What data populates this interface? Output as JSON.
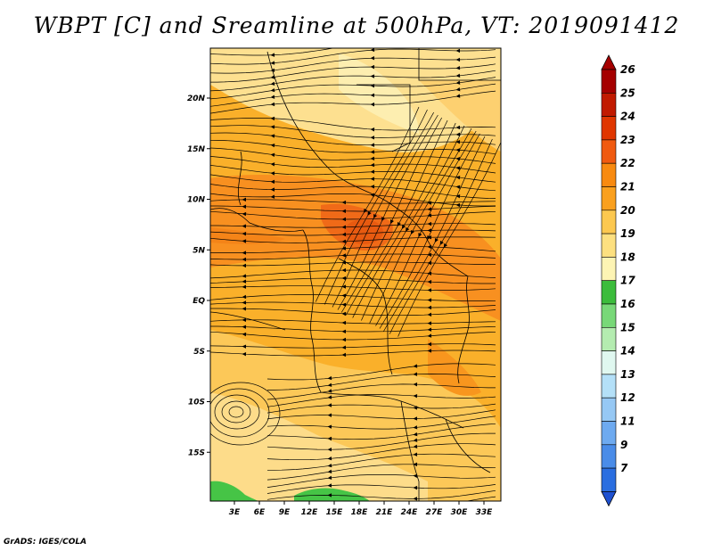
{
  "title": "WBPT [C] and Sreamline at 500hPa, VT: 2019091412",
  "credit": "GrADS: IGES/COLA",
  "map": {
    "lat_ticks": [
      {
        "label": "20N",
        "lat": 20
      },
      {
        "label": "15N",
        "lat": 15
      },
      {
        "label": "10N",
        "lat": 10
      },
      {
        "label": "5N",
        "lat": 5
      },
      {
        "label": "EQ",
        "lat": 0
      },
      {
        "label": "5S",
        "lat": -5
      },
      {
        "label": "10S",
        "lat": -10
      },
      {
        "label": "15S",
        "lat": -15
      }
    ],
    "lon_ticks": [
      {
        "label": "3E",
        "lon": 3
      },
      {
        "label": "6E",
        "lon": 6
      },
      {
        "label": "9E",
        "lon": 9
      },
      {
        "label": "12E",
        "lon": 12
      },
      {
        "label": "15E",
        "lon": 15
      },
      {
        "label": "18E",
        "lon": 18
      },
      {
        "label": "21E",
        "lon": 21
      },
      {
        "label": "24E",
        "lon": 24
      },
      {
        "label": "27E",
        "lon": 27
      },
      {
        "label": "30E",
        "lon": 30
      },
      {
        "label": "33E",
        "lon": 33
      }
    ]
  },
  "colorbar": {
    "levels": [
      {
        "label": "26",
        "color": "#a50000"
      },
      {
        "label": "25",
        "color": "#c11a00"
      },
      {
        "label": "24",
        "color": "#e03600"
      },
      {
        "label": "23",
        "color": "#f05a10"
      },
      {
        "label": "22",
        "color": "#f88a10"
      },
      {
        "label": "21",
        "color": "#faa01e"
      },
      {
        "label": "20",
        "color": "#fcc850"
      },
      {
        "label": "19",
        "color": "#fde080"
      },
      {
        "label": "18",
        "color": "#fdf4b4"
      },
      {
        "label": "17",
        "color": "#3cbc3c"
      },
      {
        "label": "16",
        "color": "#78d878"
      },
      {
        "label": "15",
        "color": "#b4ecb0"
      },
      {
        "label": "14",
        "color": "#e0f8f0"
      },
      {
        "label": "13",
        "color": "#b4e0f8"
      },
      {
        "label": "12",
        "color": "#96c8f4"
      },
      {
        "label": "11",
        "color": "#6eaaf0"
      },
      {
        "label": "9",
        "color": "#4a8ce8"
      },
      {
        "label": "7",
        "color": "#2a6ee0"
      }
    ],
    "bottom_color": "#1e50d0"
  }
}
